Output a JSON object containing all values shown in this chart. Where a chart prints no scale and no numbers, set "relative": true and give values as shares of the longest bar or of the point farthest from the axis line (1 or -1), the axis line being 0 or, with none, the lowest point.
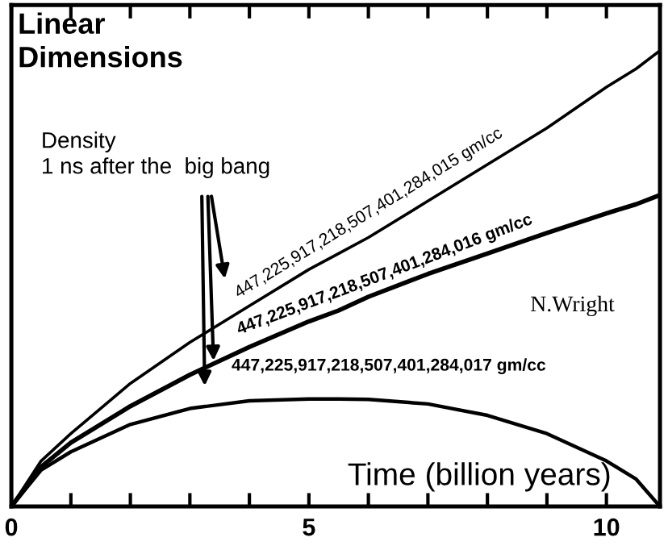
{
  "chart_data": {
    "type": "line",
    "title": "Linear\nDimensions",
    "xlabel": "Time (billion years)",
    "annotations": [
      "Density\n1 ns after the  big bang",
      "N.Wright"
    ],
    "relative": true,
    "xlim": [
      0,
      10.9
    ],
    "xticks": [
      0,
      {
        "value": 1,
        "label": null
      },
      {
        "value": 2,
        "label": null
      },
      {
        "value": 3,
        "label": null
      },
      {
        "value": 4,
        "label": null
      },
      5,
      {
        "value": 6,
        "label": null
      },
      {
        "value": 7,
        "label": null
      },
      {
        "value": 8,
        "label": null
      },
      {
        "value": 9,
        "label": null
      },
      10
    ],
    "x": [
      0,
      0.5,
      1,
      2,
      3,
      4,
      5,
      5.5,
      6,
      7,
      8,
      9,
      10,
      10.5,
      10.9
    ],
    "series": [
      {
        "name": "447,225,917,218,507,401,284,015 gm/cc",
        "color": "#000000",
        "values": [
          0,
          0.1,
          0.16,
          0.27,
          0.36,
          0.44,
          0.52,
          0.555,
          0.59,
          0.67,
          0.75,
          0.83,
          0.92,
          0.96,
          1.0
        ]
      },
      {
        "name": "447,225,917,218,507,401,284,016 gm/cc",
        "color": "#000000",
        "values": [
          0,
          0.087,
          0.14,
          0.22,
          0.289,
          0.35,
          0.406,
          0.43,
          0.46,
          0.51,
          0.555,
          0.6,
          0.643,
          0.663,
          0.683
        ]
      },
      {
        "name": "447,225,917,218,507,401,284,017 gm/cc",
        "color": "#000000",
        "values": [
          0,
          0.08,
          0.12,
          0.18,
          0.215,
          0.232,
          0.236,
          0.236,
          0.235,
          0.225,
          0.2,
          0.16,
          0.1,
          0.06,
          0
        ]
      }
    ],
    "grid": false,
    "legend": "center"
  }
}
